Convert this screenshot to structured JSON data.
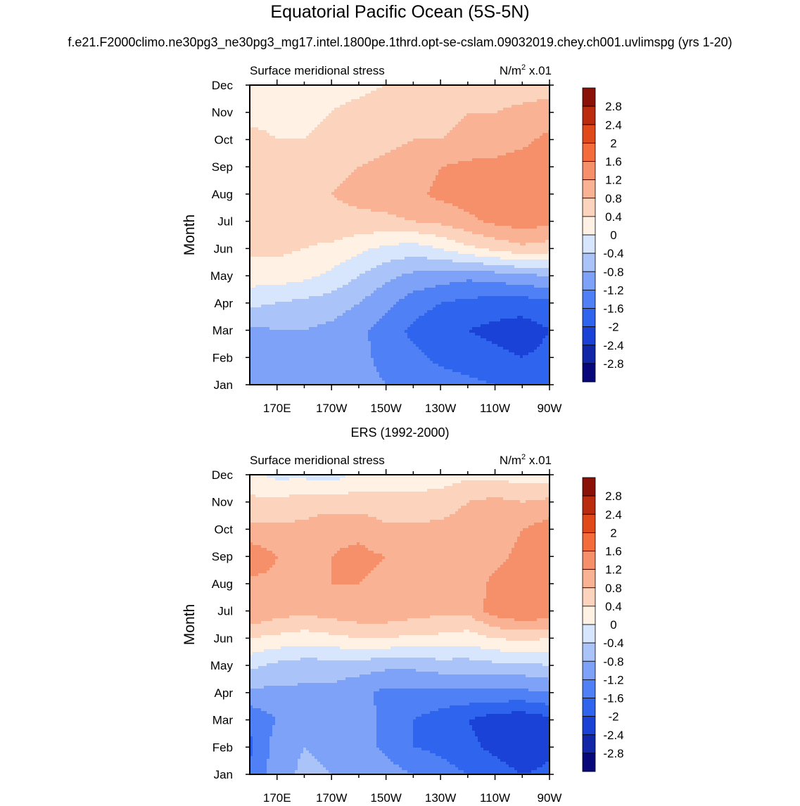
{
  "title": "Equatorial Pacific Ocean (5S-5N)",
  "subtitle": "f.e21.F2000climo.ne30pg3_ne30pg3_mg17.intel.1800pe.1thrd.opt-se-cslam.09032019.chey.ch001.uvlimspg (yrs 1-20)",
  "colors": {
    "levels": [
      "#08087a",
      "#1226a8",
      "#1a42d6",
      "#2f64ee",
      "#4f80f5",
      "#7ea2f7",
      "#aac4fa",
      "#d7e6fc",
      "#fff1e3",
      "#fcd4be",
      "#f9b394",
      "#f6906a",
      "#f46c3c",
      "#e04a1b",
      "#bb2c0f",
      "#8b1007"
    ],
    "positive_contour": "#ff7f50"
  },
  "chart_data": [
    {
      "type": "heatmap",
      "panel_title": "",
      "left_label": "Surface meridional stress",
      "right_label": "N/m",
      "right_label_sup": "2",
      "right_label_suffix": " x.01",
      "ylabel": "Month",
      "x_ticks": [
        "170E",
        "170W",
        "150W",
        "130W",
        "110W",
        "90W"
      ],
      "x_tick_values": [
        170,
        190,
        210,
        230,
        250,
        270
      ],
      "xlim": [
        160,
        270
      ],
      "y_ticks": [
        "Jan",
        "Feb",
        "Mar",
        "Apr",
        "May",
        "Jun",
        "Jul",
        "Aug",
        "Sep",
        "Oct",
        "Nov",
        "Dec"
      ],
      "colorbar_labels": [
        "2.8",
        "2.4",
        "2",
        "1.6",
        "1.2",
        "0.8",
        "0.4",
        "0",
        "-0.4",
        "-0.8",
        "-1.2",
        "-1.6",
        "-2",
        "-2.4",
        "-2.8"
      ],
      "colorbar_levels": [
        -2.8,
        -2.4,
        -2,
        -1.6,
        -1.2,
        -0.8,
        -0.4,
        0,
        0.4,
        0.8,
        1.2,
        1.6,
        2,
        2.4,
        2.8
      ],
      "x": [
        160,
        170,
        180,
        190,
        200,
        210,
        220,
        230,
        240,
        250,
        260,
        270
      ],
      "values": [
        [
          -0.9,
          -0.9,
          -1.0,
          -1.0,
          -1.1,
          -1.2,
          -1.3,
          -1.4,
          -1.5,
          -1.6,
          -1.7,
          -1.6
        ],
        [
          -1.1,
          -1.0,
          -0.9,
          -1.0,
          -1.1,
          -1.3,
          -1.5,
          -1.7,
          -1.8,
          -1.9,
          -2.0,
          -1.9
        ],
        [
          -0.9,
          -0.8,
          -0.8,
          -0.9,
          -1.1,
          -1.4,
          -1.7,
          -1.9,
          -2.0,
          -2.1,
          -2.2,
          -2.0
        ],
        [
          -0.3,
          -0.4,
          -0.5,
          -0.6,
          -0.8,
          -1.1,
          -1.4,
          -1.6,
          -1.7,
          -1.8,
          -1.8,
          -1.7
        ],
        [
          0.2,
          0.2,
          0.1,
          -0.1,
          -0.4,
          -0.7,
          -0.9,
          -1.0,
          -1.1,
          -1.0,
          -0.9,
          -0.8
        ],
        [
          0.5,
          0.5,
          0.4,
          0.3,
          0.1,
          -0.1,
          -0.2,
          0.0,
          0.3,
          0.5,
          0.7,
          0.6
        ],
        [
          0.6,
          0.6,
          0.6,
          0.7,
          0.7,
          0.7,
          0.8,
          0.9,
          1.1,
          1.3,
          1.4,
          1.3
        ],
        [
          0.5,
          0.6,
          0.7,
          0.8,
          0.9,
          1.0,
          1.1,
          1.3,
          1.4,
          1.4,
          1.4,
          1.5
        ],
        [
          0.4,
          0.5,
          0.6,
          0.7,
          0.8,
          0.9,
          1.0,
          1.2,
          1.3,
          1.3,
          1.4,
          1.5
        ],
        [
          0.5,
          0.4,
          0.4,
          0.5,
          0.6,
          0.7,
          0.8,
          0.8,
          0.9,
          1.0,
          1.1,
          1.3
        ],
        [
          0.3,
          0.3,
          0.3,
          0.4,
          0.5,
          0.6,
          0.7,
          0.7,
          0.8,
          0.8,
          0.9,
          1.0
        ],
        [
          0.0,
          0.2,
          0.2,
          0.3,
          0.3,
          0.4,
          0.5,
          0.5,
          0.6,
          0.6,
          0.6,
          0.6
        ]
      ]
    },
    {
      "type": "heatmap",
      "panel_title": "ERS (1992-2000)",
      "left_label": "Surface meridional stress",
      "right_label": "N/m",
      "right_label_sup": "2",
      "right_label_suffix": " x.01",
      "ylabel": "Month",
      "x_ticks": [
        "170E",
        "170W",
        "150W",
        "130W",
        "110W",
        "90W"
      ],
      "x_tick_values": [
        170,
        190,
        210,
        230,
        250,
        270
      ],
      "xlim": [
        160,
        270
      ],
      "y_ticks": [
        "Jan",
        "Feb",
        "Mar",
        "Apr",
        "May",
        "Jun",
        "Jul",
        "Aug",
        "Sep",
        "Oct",
        "Nov",
        "Dec"
      ],
      "colorbar_labels": [
        "2.8",
        "2.4",
        "2",
        "1.6",
        "1.2",
        "0.8",
        "0.4",
        "0",
        "-0.4",
        "-0.8",
        "-1.2",
        "-1.6",
        "-2",
        "-2.4",
        "-2.8"
      ],
      "colorbar_levels": [
        -2.8,
        -2.4,
        -2,
        -1.6,
        -1.2,
        -0.8,
        -0.4,
        0,
        0.4,
        0.8,
        1.2,
        1.6,
        2,
        2.4,
        2.8
      ],
      "x": [
        160,
        170,
        180,
        190,
        200,
        210,
        220,
        230,
        240,
        250,
        260,
        270
      ],
      "values": [
        [
          -1.5,
          -1.0,
          -0.7,
          -0.8,
          -0.9,
          -1.0,
          -1.2,
          -1.4,
          -1.6,
          -1.8,
          -2.0,
          -1.9
        ],
        [
          -1.7,
          -1.0,
          -0.8,
          -0.9,
          -1.0,
          -1.3,
          -1.6,
          -1.7,
          -1.9,
          -2.1,
          -2.3,
          -2.1
        ],
        [
          -1.5,
          -1.2,
          -0.8,
          -0.9,
          -1.0,
          -1.3,
          -1.6,
          -1.8,
          -2.0,
          -2.2,
          -2.3,
          -2.1
        ],
        [
          -0.9,
          -0.9,
          -0.9,
          -0.9,
          -1.1,
          -1.3,
          -1.3,
          -1.3,
          -1.3,
          -1.3,
          -1.3,
          -1.2
        ],
        [
          -0.3,
          -0.5,
          -0.6,
          -0.6,
          -0.6,
          -0.7,
          -0.7,
          -0.6,
          -0.6,
          -0.5,
          -0.5,
          -0.4
        ],
        [
          0.4,
          0.3,
          0.2,
          0.3,
          0.4,
          0.4,
          0.3,
          0.3,
          0.2,
          0.4,
          0.5,
          0.4
        ],
        [
          1.2,
          1.0,
          0.9,
          1.0,
          1.1,
          1.1,
          1.0,
          0.9,
          0.9,
          1.4,
          1.6,
          1.5
        ],
        [
          1.1,
          1.1,
          1.1,
          1.2,
          1.2,
          1.1,
          1.1,
          1.0,
          1.0,
          1.3,
          1.5,
          1.5
        ],
        [
          1.5,
          1.2,
          1.1,
          1.2,
          1.3,
          1.2,
          1.1,
          1.1,
          1.0,
          1.1,
          1.3,
          1.4
        ],
        [
          0.9,
          0.9,
          0.9,
          1.1,
          1.1,
          0.9,
          0.9,
          0.9,
          1.0,
          1.0,
          1.2,
          1.4
        ],
        [
          0.5,
          0.5,
          0.6,
          0.6,
          0.6,
          0.5,
          0.5,
          0.6,
          0.8,
          0.9,
          0.8,
          0.9
        ],
        [
          0.1,
          -0.1,
          -0.1,
          -0.2,
          0.1,
          0.2,
          0.2,
          0.2,
          0.3,
          0.3,
          0.2,
          0.2
        ]
      ]
    }
  ]
}
